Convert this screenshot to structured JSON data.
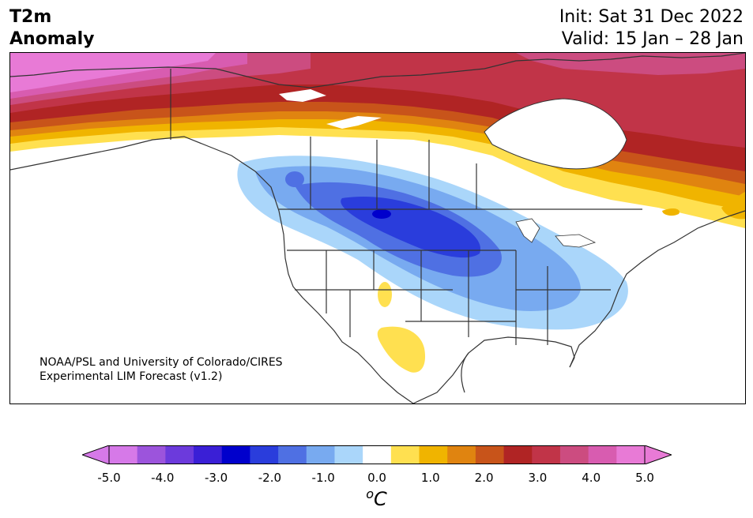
{
  "title": {
    "line1": "T2m",
    "line2": "Anomaly"
  },
  "dates": {
    "init": "Init: Sat 31 Dec 2022",
    "valid": "Valid: 15 Jan – 28 Jan"
  },
  "credit": {
    "line1": "NOAA/PSL and University of Colorado/CIRES",
    "line2": "Experimental LIM Forecast (v1.2)"
  },
  "colorbar": {
    "ticks": [
      "-5.0",
      "-4.0",
      "-3.0",
      "-2.0",
      "-1.0",
      "0.0",
      "1.0",
      "2.0",
      "3.0",
      "4.0",
      "5.0"
    ],
    "unit_sup": "o",
    "unit": "C",
    "colors": [
      "#d679e8",
      "#9c54dc",
      "#6c3adc",
      "#3a1fd6",
      "#0000cc",
      "#2a3ddc",
      "#4f70e3",
      "#78aaf0",
      "#aad6fa",
      "#ffffff",
      "#ffe050",
      "#f0b400",
      "#e08410",
      "#c8541a",
      "#b02424",
      "#c13448",
      "#cc4c80",
      "#d85cb0",
      "#e87ad6"
    ],
    "low_extend": "#d679e8",
    "high_extend": "#e87ad6"
  }
}
